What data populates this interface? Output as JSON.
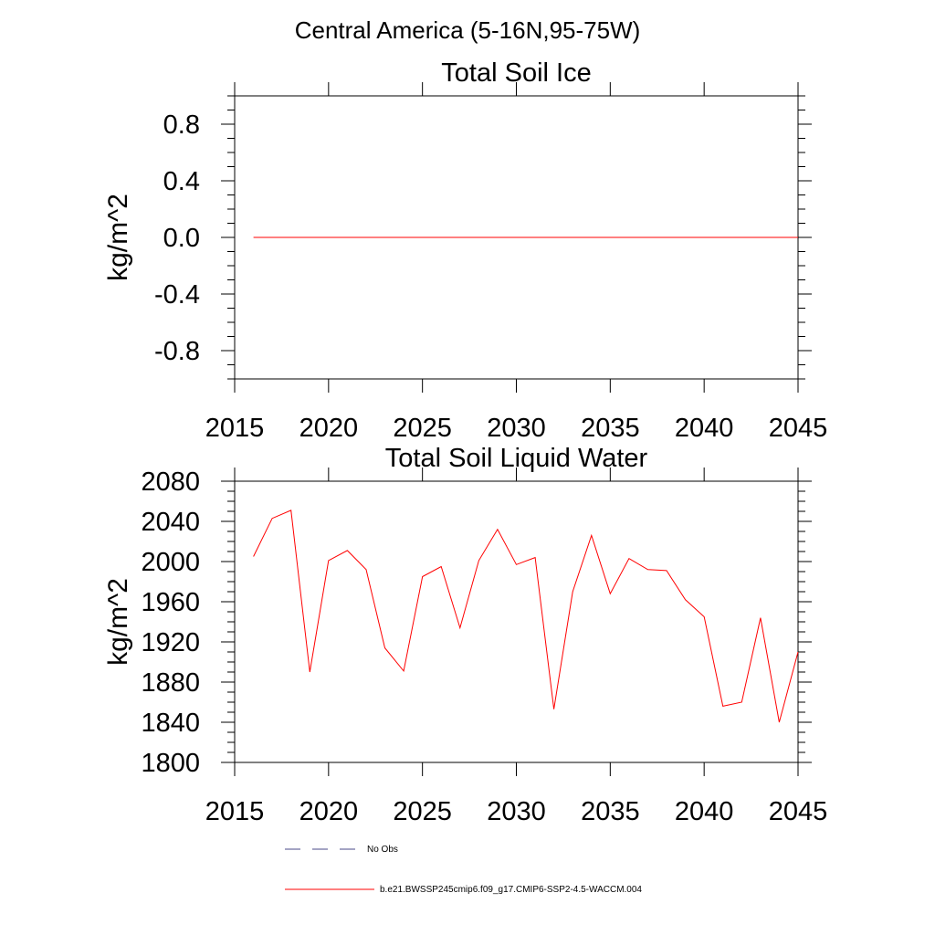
{
  "figure": {
    "main_title": "Central America (5-16N,95-75W)"
  },
  "chart_data": [
    {
      "type": "line",
      "title": "Total Soil Ice",
      "xlabel": "",
      "ylabel": "kg/m^2",
      "xlim": [
        2015,
        2045
      ],
      "ylim": [
        -1.0,
        1.0
      ],
      "x_ticks": [
        2015,
        2020,
        2025,
        2030,
        2035,
        2040,
        2045
      ],
      "x_tick_labels": [
        "2015",
        "2020",
        "2025",
        "2030",
        "2035",
        "2040",
        "2045"
      ],
      "y_ticks": [
        -0.8,
        -0.4,
        0.0,
        0.4,
        0.8
      ],
      "y_tick_labels": [
        "-0.8",
        "-0.4",
        "0.0",
        "0.4",
        "0.8"
      ],
      "grid": false,
      "series": [
        {
          "name": "b.e21.BWSSP245cmip6.f09_g17.CMIP6-SSP2-4.5-WACCM.004",
          "color": "#ff0000",
          "x": [
            2016,
            2017,
            2018,
            2019,
            2020,
            2021,
            2022,
            2023,
            2024,
            2025,
            2026,
            2027,
            2028,
            2029,
            2030,
            2031,
            2032,
            2033,
            2034,
            2035,
            2036,
            2037,
            2038,
            2039,
            2040,
            2041,
            2042,
            2043,
            2044,
            2045
          ],
          "y": [
            0,
            0,
            0,
            0,
            0,
            0,
            0,
            0,
            0,
            0,
            0,
            0,
            0,
            0,
            0,
            0,
            0,
            0,
            0,
            0,
            0,
            0,
            0,
            0,
            0,
            0,
            0,
            0,
            0,
            0
          ]
        }
      ]
    },
    {
      "type": "line",
      "title": "Total Soil Liquid Water",
      "xlabel": "",
      "ylabel": "kg/m^2",
      "xlim": [
        2015,
        2045
      ],
      "ylim": [
        1800,
        2080
      ],
      "x_ticks": [
        2015,
        2020,
        2025,
        2030,
        2035,
        2040,
        2045
      ],
      "x_tick_labels": [
        "2015",
        "2020",
        "2025",
        "2030",
        "2035",
        "2040",
        "2045"
      ],
      "y_ticks": [
        1800,
        1840,
        1880,
        1920,
        1960,
        2000,
        2040,
        2080
      ],
      "y_tick_labels": [
        "1800",
        "1840",
        "1880",
        "1920",
        "1960",
        "2000",
        "2040",
        "2080"
      ],
      "grid": false,
      "series": [
        {
          "name": "b.e21.BWSSP245cmip6.f09_g17.CMIP6-SSP2-4.5-WACCM.004",
          "color": "#ff0000",
          "x": [
            2016,
            2017,
            2018,
            2019,
            2020,
            2021,
            2022,
            2023,
            2024,
            2025,
            2026,
            2027,
            2028,
            2029,
            2030,
            2031,
            2032,
            2033,
            2034,
            2035,
            2036,
            2037,
            2038,
            2039,
            2040,
            2041,
            2042,
            2043,
            2044,
            2045
          ],
          "y": [
            2005,
            2043,
            2051,
            1890,
            2001,
            2011,
            1992,
            1914,
            1891,
            1985,
            1995,
            1934,
            2001,
            2032,
            1997,
            2004,
            1853,
            1970,
            2026,
            1968,
            2003,
            1992,
            1991,
            1962,
            1945,
            1856,
            1860,
            1944,
            1840,
            1910
          ]
        }
      ]
    }
  ],
  "legend": {
    "placement": "bottom",
    "items": [
      {
        "label": "No Obs",
        "color": "#4a4a8a",
        "style": "dashed"
      },
      {
        "label": "b.e21.BWSSP245cmip6.f09_g17.CMIP6-SSP2-4.5-WACCM.004",
        "color": "#ff0000",
        "style": "solid"
      }
    ]
  }
}
